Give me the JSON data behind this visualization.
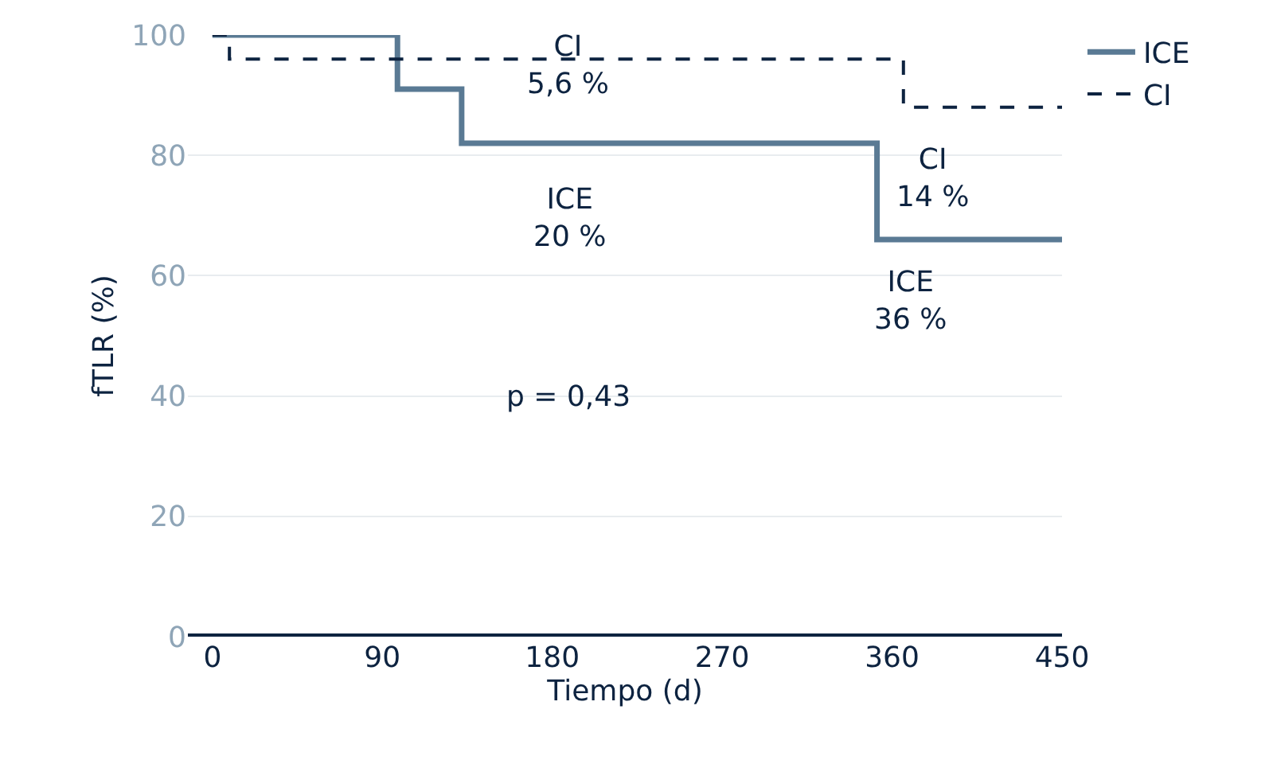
{
  "chart_data": {
    "type": "step",
    "xlabel": "Tiempo (d)",
    "ylabel": "fTLR (%)",
    "series": [
      {
        "name": "ICE",
        "color": "#5a7a94",
        "line_style": "solid",
        "x": [
          0,
          98,
          132,
          352,
          450
        ],
        "values": [
          100,
          91,
          82,
          66,
          66
        ]
      },
      {
        "name": "CI",
        "color": "#0d2340",
        "line_style": "dashed",
        "x": [
          0,
          9,
          366,
          450
        ],
        "values": [
          100,
          96,
          88,
          88
        ]
      }
    ],
    "xlim": [
      -13,
      450
    ],
    "xticks": [
      0,
      90,
      180,
      270,
      360,
      450
    ],
    "ylim": [
      0,
      100
    ],
    "yticks": [
      0,
      20,
      40,
      60,
      80,
      100
    ],
    "grid": "y",
    "legend": "top right",
    "marker": "none",
    "annotations": [
      "CI\n5,6 %",
      "ICE\n20 %",
      "CI\n14 %",
      "ICE\n36 %",
      "p = 0,43"
    ]
  }
}
